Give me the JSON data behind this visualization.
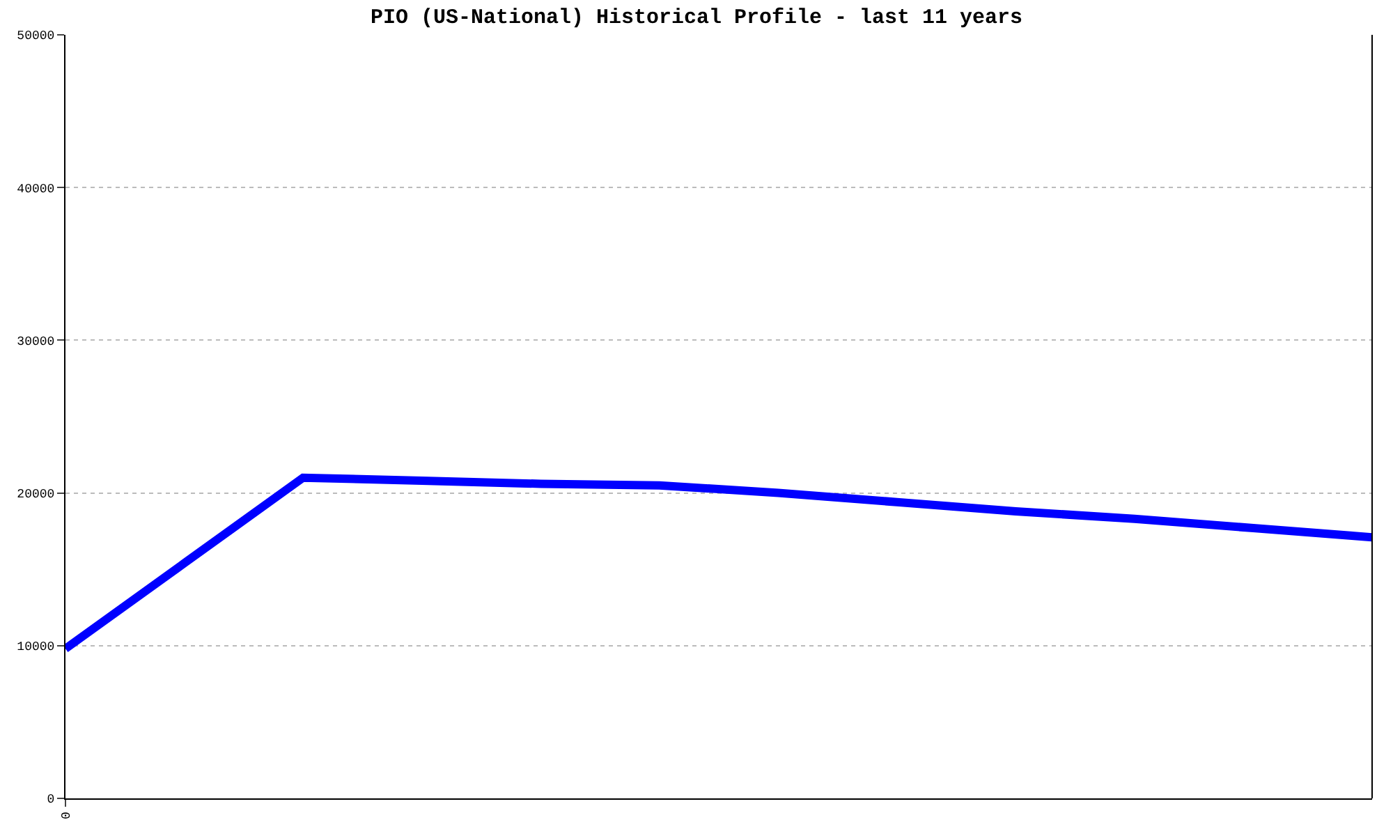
{
  "chart_data": {
    "type": "line",
    "title": "PIO (US-National) Historical Profile - last 11 years",
    "categories": [
      "0",
      null,
      null,
      null,
      null,
      null,
      null,
      null,
      null,
      null,
      null,
      null
    ],
    "series": [
      {
        "color": "#0000ff",
        "values": [
          9800,
          15400,
          21000,
          20800,
          20600,
          20500,
          20000,
          19400,
          18800,
          18300,
          17700,
          17100
        ]
      }
    ],
    "ylim": [
      0,
      50000
    ],
    "yticks": [
      0,
      10000,
      20000,
      30000,
      40000,
      50000
    ],
    "grid": "y",
    "marker": "none",
    "line_style": "solid"
  }
}
